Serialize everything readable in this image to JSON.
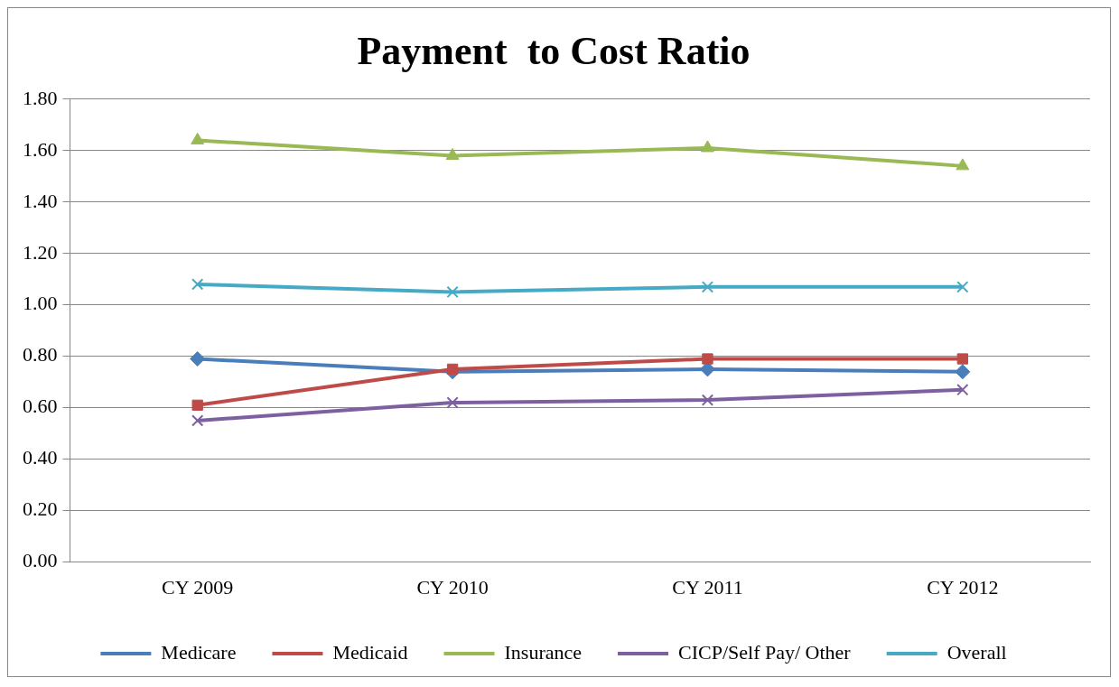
{
  "chart_data": {
    "type": "line",
    "title": "Payment  to Cost Ratio",
    "categories": [
      "CY 2009",
      "CY 2010",
      "CY 2011",
      "CY 2012"
    ],
    "series": [
      {
        "name": "Medicare",
        "color": "#4a7ebb",
        "marker": "diamond",
        "values": [
          0.79,
          0.74,
          0.75,
          0.74
        ]
      },
      {
        "name": "Medicaid",
        "color": "#be4b48",
        "marker": "square",
        "values": [
          0.61,
          0.75,
          0.79,
          0.79
        ]
      },
      {
        "name": "Insurance",
        "color": "#98b954",
        "marker": "triangle",
        "values": [
          1.64,
          1.58,
          1.61,
          1.54
        ]
      },
      {
        "name": "CICP/Self Pay/ Other",
        "color": "#7d60a0",
        "marker": "cross",
        "values": [
          0.55,
          0.62,
          0.63,
          0.67
        ]
      },
      {
        "name": "Overall",
        "color": "#46aac5",
        "marker": "cross",
        "values": [
          1.08,
          1.05,
          1.07,
          1.07
        ]
      }
    ],
    "ylim": [
      0,
      1.8
    ],
    "yticks": [
      {
        "value": 0,
        "label": "0.00"
      },
      {
        "value": 0.2,
        "label": "0.20"
      },
      {
        "value": 0.4,
        "label": "0.40"
      },
      {
        "value": 0.6,
        "label": "0.60"
      },
      {
        "value": 0.8,
        "label": "0.80"
      },
      {
        "value": 1,
        "label": "1.00"
      },
      {
        "value": 1.2,
        "label": "1.20"
      },
      {
        "value": 1.4,
        "label": "1.40"
      },
      {
        "value": 1.6,
        "label": "1.60"
      },
      {
        "value": 1.8,
        "label": "1.80"
      }
    ],
    "grid": "y",
    "legend": "bottom",
    "line_style": "solid"
  }
}
